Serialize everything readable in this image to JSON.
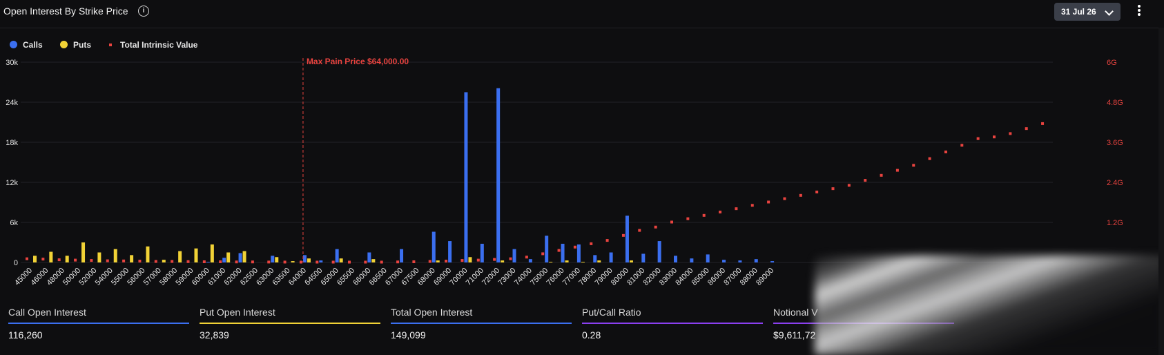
{
  "header": {
    "title": "Open Interest By Strike Price",
    "info_icon": "info-circle-icon",
    "date_select": "31 Jul 26",
    "menu_icon": "vertical-ellipsis-icon"
  },
  "legend": {
    "calls": "Calls",
    "puts": "Puts",
    "intrinsic": "Total Intrinsic Value"
  },
  "colors": {
    "calls": "#3b6ff0",
    "puts": "#f1d236",
    "intrinsic": "#e8433f",
    "grid": "#232327",
    "axis_text": "#e6e6e6",
    "right_axis_text": "#e8433f"
  },
  "chart_data": {
    "type": "bar",
    "annotation": "Max Pain Price $64,000.00",
    "max_pain_strike": "64000",
    "categories": [
      "45000",
      "46000",
      "48000",
      "50000",
      "52000",
      "54000",
      "55000",
      "56000",
      "57000",
      "58000",
      "59000",
      "60000",
      "61000",
      "62000",
      "62500",
      "63000",
      "63500",
      "64000",
      "64500",
      "65000",
      "65500",
      "66000",
      "66500",
      "67000",
      "67500",
      "68000",
      "69000",
      "70000",
      "71000",
      "72000",
      "73000",
      "74000",
      "75000",
      "76000",
      "77000",
      "78000",
      "79000",
      "80000",
      "81000",
      "82000",
      "83000",
      "84000",
      "85000",
      "86000",
      "87000",
      "88000",
      "89000"
    ],
    "series": [
      {
        "name": "Calls",
        "axis": "left",
        "values": [
          0,
          0,
          0,
          0,
          0,
          0,
          0,
          0,
          0,
          0,
          0,
          100,
          700,
          1400,
          0,
          1000,
          0,
          1100,
          300,
          2000,
          0,
          1500,
          0,
          2000,
          0,
          4600,
          3200,
          25500,
          2800,
          26100,
          2000,
          500,
          4000,
          2800,
          2700,
          1100,
          1500,
          7000,
          1300,
          3200,
          1000,
          600,
          1200,
          400,
          300,
          500,
          200
        ]
      },
      {
        "name": "Puts",
        "axis": "left",
        "values": [
          1000,
          1600,
          1000,
          3000,
          1500,
          2000,
          1100,
          2400,
          400,
          1700,
          2100,
          2700,
          1500,
          1700,
          0,
          800,
          200,
          600,
          0,
          600,
          0,
          500,
          0,
          0,
          0,
          300,
          0,
          800,
          0,
          300,
          0,
          0,
          100,
          300,
          100,
          300,
          0,
          300,
          0,
          0,
          0,
          0,
          0,
          0,
          0,
          0,
          0
        ]
      },
      {
        "name": "Total Intrinsic Value",
        "axis": "right",
        "values": [
          0.1,
          0.09,
          0.07,
          0.06,
          0.05,
          0.04,
          0.035,
          0.03,
          0.02,
          0.02,
          0.015,
          0.01,
          0.01,
          0.005,
          0.005,
          0.002,
          0.001,
          0,
          0,
          0,
          0,
          0,
          0,
          0.005,
          0.01,
          0.02,
          0.03,
          0.05,
          0.06,
          0.08,
          0.1,
          0.15,
          0.25,
          0.35,
          0.45,
          0.55,
          0.65,
          0.8,
          0.95,
          1.05,
          1.2,
          1.3,
          1.4,
          1.5,
          1.6,
          1.7,
          1.8
        ]
      }
    ],
    "right_tail_intrinsic": [
      1.9,
      2.0,
      2.1,
      2.2,
      2.3,
      2.45,
      2.6,
      2.75,
      2.9,
      3.1,
      3.3,
      3.5,
      3.7,
      3.75,
      3.85,
      4.0,
      4.15,
      4.75,
      5.25
    ],
    "y_left": {
      "ticks": [
        "0",
        "6k",
        "12k",
        "18k",
        "24k",
        "30k"
      ],
      "min": 0,
      "max": 30000
    },
    "y_right": {
      "ticks": [
        "",
        "1.2G",
        "2.4G",
        "3.6G",
        "4.8G",
        "6G"
      ],
      "min": 0,
      "max": 6
    },
    "grid": true,
    "legend_position": "top-left"
  },
  "stats": [
    {
      "label": "Call Open Interest",
      "value": "116,260",
      "color": "#3b6ff0"
    },
    {
      "label": "Put Open Interest",
      "value": "32,839",
      "color": "#f1d236"
    },
    {
      "label": "Total Open Interest",
      "value": "149,099",
      "color": "#3b6ff0"
    },
    {
      "label": "Put/Call Ratio",
      "value": "0.28",
      "color": "#8a3ff0"
    },
    {
      "label": "Notional V",
      "value": "$9,611,72",
      "color": "#8a3ff0"
    }
  ]
}
